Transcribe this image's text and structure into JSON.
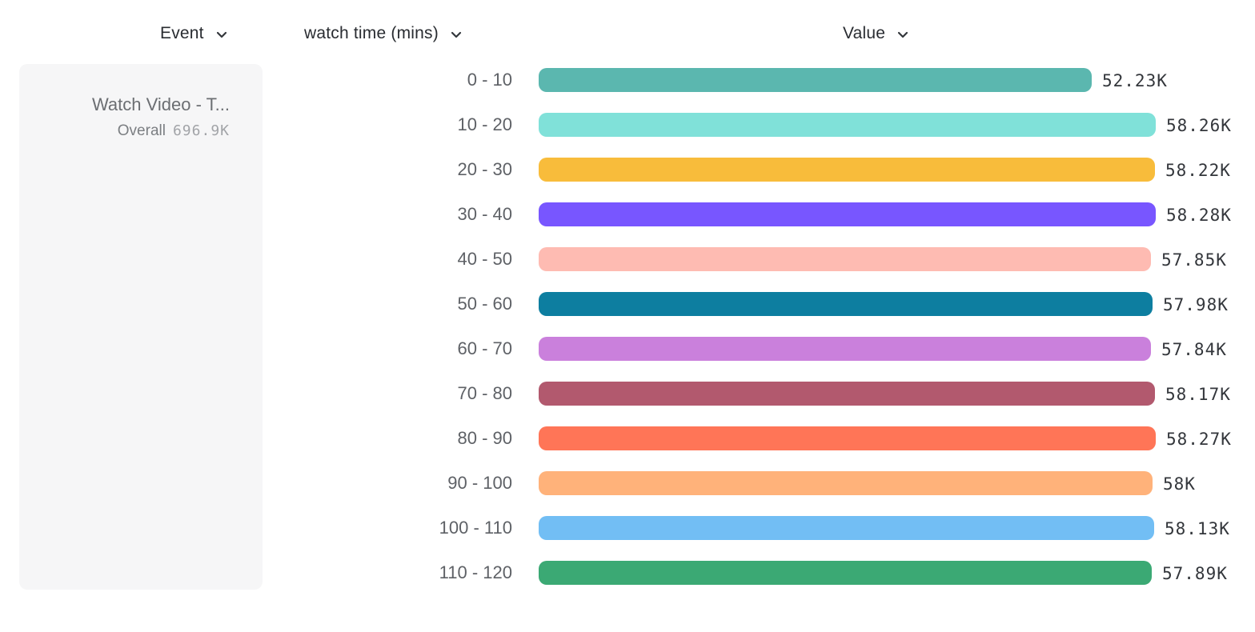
{
  "header": {
    "event": {
      "label": "Event"
    },
    "breakdown": {
      "label": "watch time (mins)"
    },
    "value": {
      "label": "Value"
    }
  },
  "event_card": {
    "title": "Watch Video - T...",
    "overall_label": "Overall",
    "overall_value": "696.9K"
  },
  "icons": {
    "chevron_down": "chevron-down"
  },
  "chart_data": {
    "type": "bar",
    "orientation": "horizontal",
    "title": "",
    "xlabel": "Value",
    "ylabel": "watch time (mins)",
    "xlim": [
      0,
      58280
    ],
    "grid": false,
    "legend": "none",
    "categories": [
      "0 - 10",
      "10 - 20",
      "20 - 30",
      "30 - 40",
      "40 - 50",
      "50 - 60",
      "60 - 70",
      "70 - 80",
      "80 - 90",
      "90 - 100",
      "100 - 110",
      "110 - 120"
    ],
    "values": [
      52230,
      58260,
      58220,
      58280,
      57850,
      57980,
      57840,
      58170,
      58270,
      58000,
      58130,
      57890
    ],
    "value_labels": [
      "52.23K",
      "58.26K",
      "58.22K",
      "58.28K",
      "57.85K",
      "57.98K",
      "57.84K",
      "58.17K",
      "58.27K",
      "58K",
      "58.13K",
      "57.89K"
    ],
    "colors": [
      "#5BB7AF",
      "#80E1D9",
      "#F8BC3B",
      "#7856FF",
      "#FEBBB2",
      "#0D7EA0",
      "#CA80DC",
      "#B2596E",
      "#FF7557",
      "#FFB27A",
      "#72BEF4",
      "#3BA974"
    ]
  }
}
